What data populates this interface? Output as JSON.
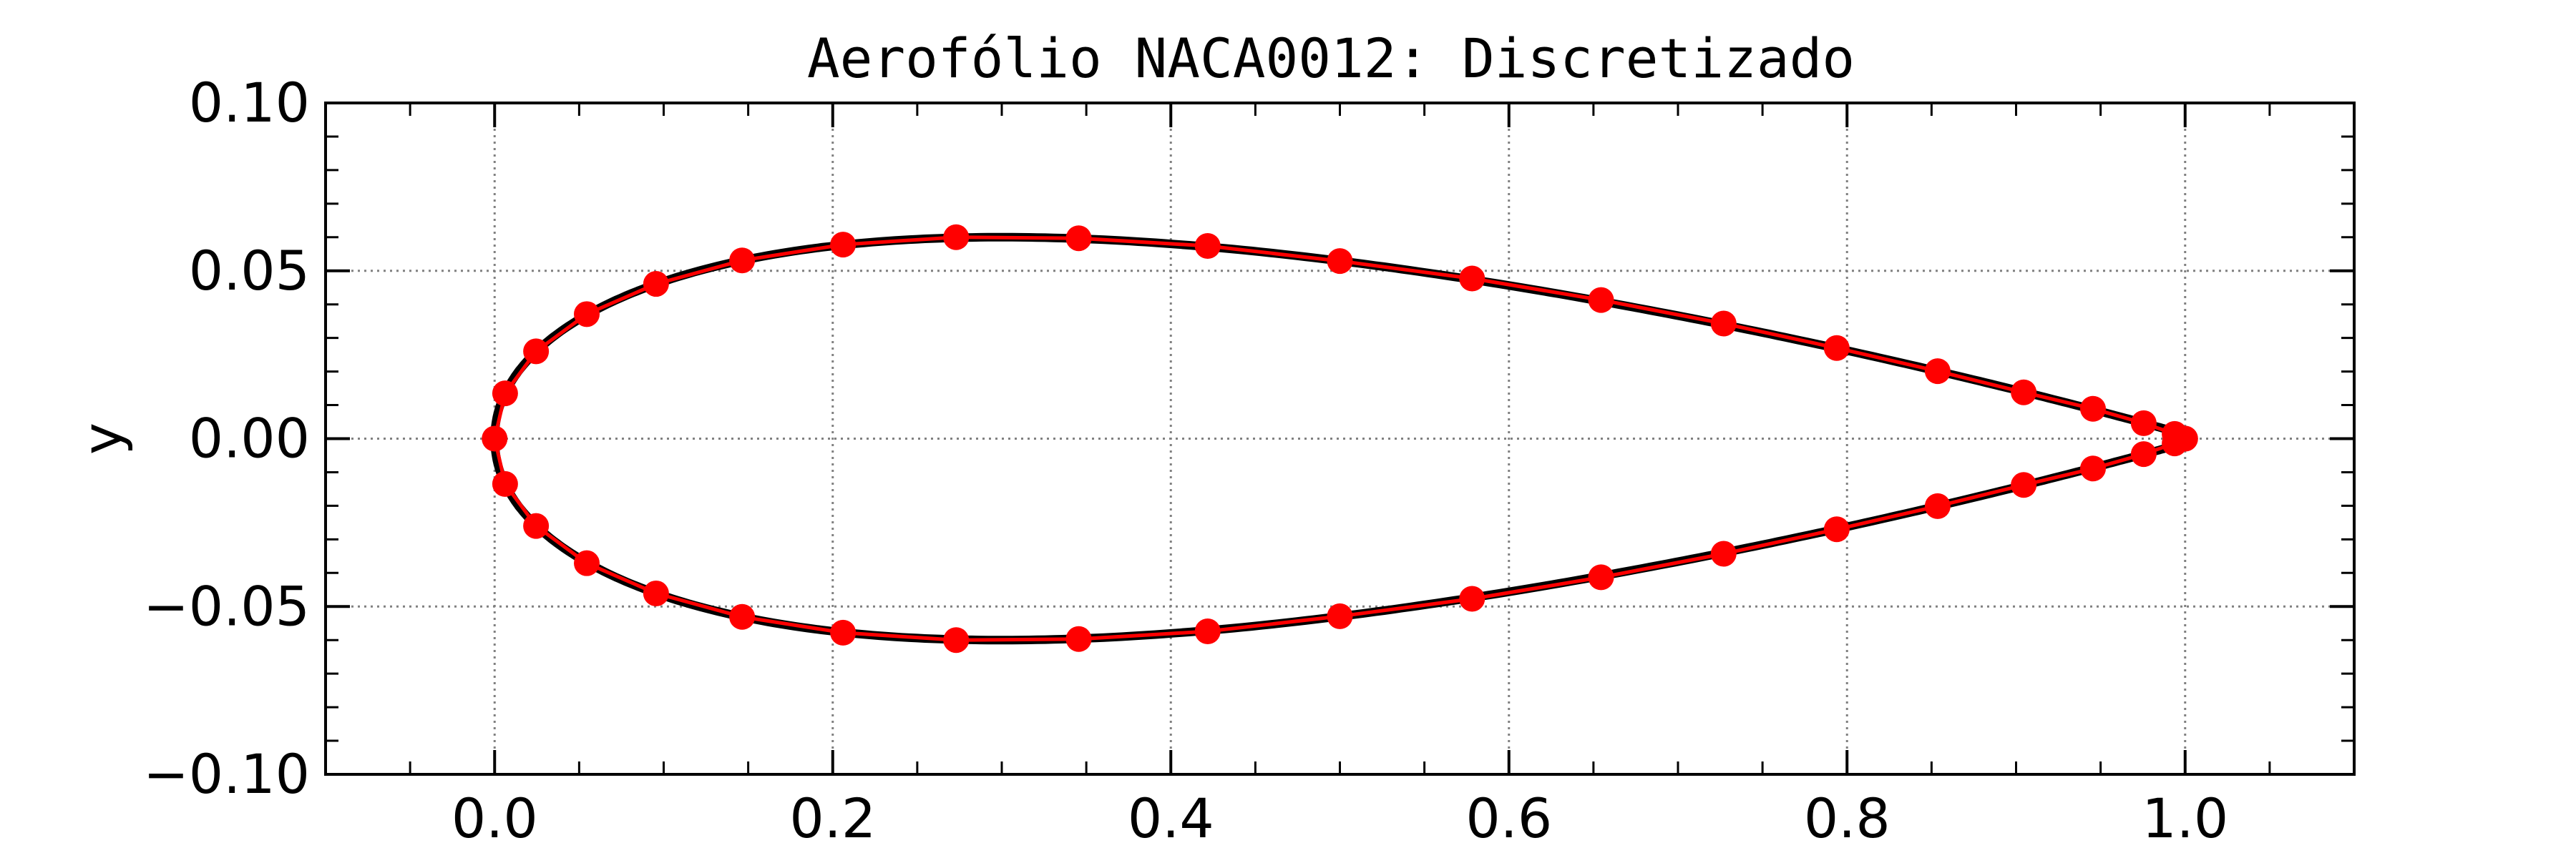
{
  "chart_data": {
    "type": "line",
    "title": "Aerofólio NACA0012: Discretizado",
    "xlabel": "",
    "ylabel": "y",
    "xlim": [
      -0.1,
      1.1
    ],
    "ylim": [
      -0.1,
      0.1
    ],
    "grid": true,
    "xticks": [
      0.0,
      0.2,
      0.4,
      0.6,
      0.8,
      1.0
    ],
    "xtick_labels": [
      "0.0",
      "0.2",
      "0.4",
      "0.6",
      "0.8",
      "1.0"
    ],
    "yticks": [
      -0.1,
      -0.05,
      0.0,
      0.05,
      0.1
    ],
    "ytick_labels": [
      "−0.10",
      "−0.05",
      "0.00",
      "0.05",
      "0.10"
    ],
    "x_minor_step": 0.05,
    "y_minor_step": 0.01,
    "colors": {
      "outline": "#000000",
      "panel_line": "#ff0000",
      "marker": "#ff0000",
      "grid": "#808080"
    },
    "series": [
      {
        "x": [
          1.0,
          0.9938,
          0.9755,
          0.9455,
          0.9045,
          0.8536,
          0.7939,
          0.727,
          0.6545,
          0.5782,
          0.5,
          0.4218,
          0.3455,
          0.273,
          0.2061,
          0.1464,
          0.0955,
          0.0545,
          0.0245,
          0.0062,
          0.0,
          0.0062,
          0.0245,
          0.0545,
          0.0955,
          0.1464,
          0.2061,
          0.273,
          0.3455,
          0.4218,
          0.5,
          0.5782,
          0.6545,
          0.727,
          0.7939,
          0.8536,
          0.9045,
          0.9455,
          0.9755,
          0.9938,
          1.0
        ],
        "y": [
          0.0,
          0.0014,
          0.0046,
          0.0089,
          0.0138,
          0.0201,
          0.027,
          0.0343,
          0.0413,
          0.0477,
          0.0529,
          0.0574,
          0.0597,
          0.06,
          0.0578,
          0.0531,
          0.0461,
          0.0371,
          0.026,
          0.0135,
          0.0,
          -0.0135,
          -0.026,
          -0.0371,
          -0.0461,
          -0.0531,
          -0.0578,
          -0.06,
          -0.0597,
          -0.0574,
          -0.0529,
          -0.0477,
          -0.0413,
          -0.0343,
          -0.027,
          -0.0201,
          -0.0138,
          -0.0089,
          -0.0046,
          -0.0014,
          0.0
        ]
      }
    ]
  }
}
